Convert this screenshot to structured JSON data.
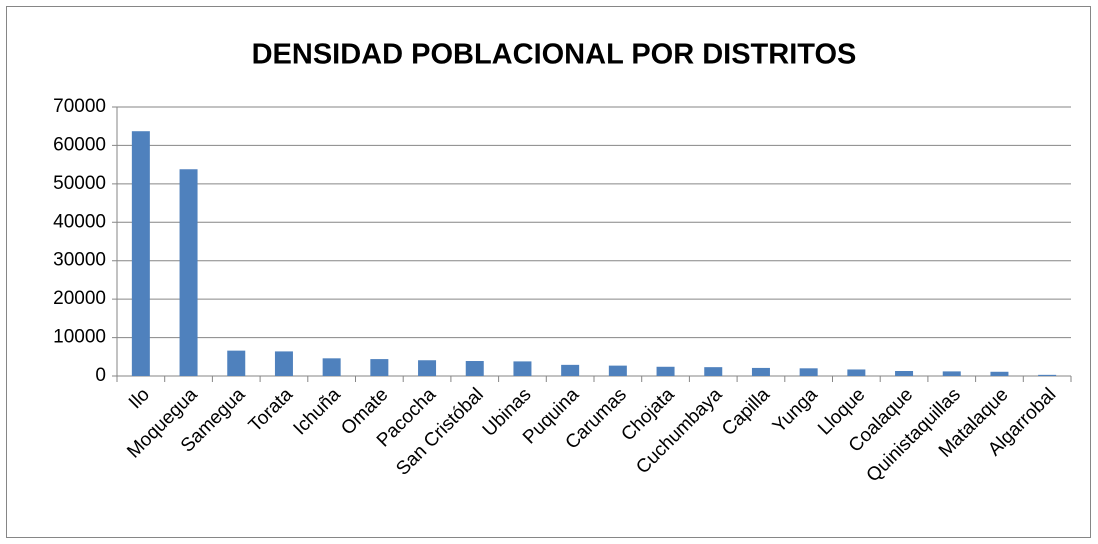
{
  "chart_data": {
    "type": "bar",
    "title": "DENSIDAD POBLACIONAL POR DISTRITOS",
    "categories": [
      "Ilo",
      "Moquegua",
      "Samegua",
      "Torata",
      "Ichuña",
      "Omate",
      "Pacocha",
      "San Cristóbal",
      "Ubinas",
      "Puquina",
      "Carumas",
      "Chojata",
      "Cuchumbaya",
      "Capilla",
      "Yunga",
      "Lloque",
      "Coalaque",
      "Quinistaquillas",
      "Matalaque",
      "Algarrobal"
    ],
    "values": [
      63700,
      53800,
      6600,
      6400,
      4600,
      4400,
      4100,
      3900,
      3800,
      2900,
      2700,
      2400,
      2300,
      2100,
      2000,
      1700,
      1300,
      1200,
      1100,
      300
    ],
    "color": "#4f81bd",
    "ylim": [
      0,
      70000
    ],
    "yticks": [
      0,
      10000,
      20000,
      30000,
      40000,
      50000,
      60000,
      70000
    ],
    "grid": true
  }
}
